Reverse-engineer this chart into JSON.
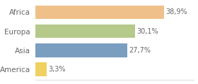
{
  "categories": [
    "Africa",
    "Europa",
    "Asia",
    "America"
  ],
  "values": [
    38.9,
    30.1,
    27.7,
    3.3
  ],
  "bar_colors": [
    "#f0c08a",
    "#b5c98a",
    "#7a9ec0",
    "#f0d060"
  ],
  "labels": [
    "38,9%",
    "30,1%",
    "27,7%",
    "3,3%"
  ],
  "background_color": "#ffffff",
  "xlim": [
    0,
    48
  ],
  "bar_height": 0.72,
  "text_color": "#666666",
  "label_fontsize": 7.0,
  "tick_fontsize": 7.5
}
